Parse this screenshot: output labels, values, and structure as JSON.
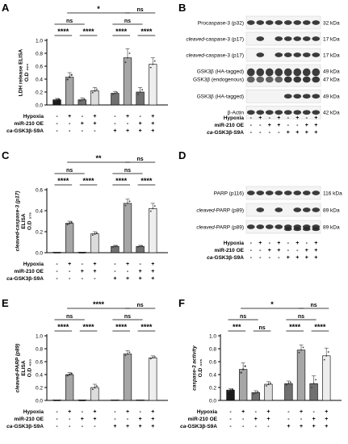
{
  "panels": {
    "A": {
      "label": "A",
      "ylabel": [
        "LDH release ELISA",
        "O.D ₄₉₀"
      ],
      "ylim": [
        0,
        1.0
      ],
      "yticks": [
        "0.0",
        "0.2",
        "0.4",
        "0.6",
        "0.8",
        "1.0"
      ],
      "values": [
        0.08,
        0.43,
        0.08,
        0.22,
        0.18,
        0.73,
        0.2,
        0.63
      ],
      "errors": [
        0.02,
        0.07,
        0.03,
        0.05,
        0.03,
        0.14,
        0.07,
        0.1
      ],
      "markers": [
        "square",
        "square",
        "triangle",
        "triangle",
        "circle",
        "circle",
        "circle",
        "circle"
      ],
      "rows": [
        {
          "label": "Hypoxia",
          "signs": [
            "-",
            "+",
            "-",
            "+",
            "-",
            "+",
            "-",
            "+"
          ]
        },
        {
          "label": "miR-210 OE",
          "signs": [
            "-",
            "-",
            "+",
            "+",
            "-",
            "-",
            "+",
            "+"
          ]
        },
        {
          "label": "ca-GSK3β-S9A",
          "signs": [
            "-",
            "-",
            "-",
            "-",
            "+",
            "+",
            "+",
            "+"
          ]
        }
      ],
      "sig": [
        {
          "text": "****",
          "a": 0,
          "b": 1,
          "level": 0
        },
        {
          "text": "****",
          "a": 2,
          "b": 3,
          "level": 0
        },
        {
          "text": "****",
          "a": 4,
          "b": 5,
          "level": 0
        },
        {
          "text": "****",
          "a": 6,
          "b": 7,
          "level": 0
        },
        {
          "text": "ns",
          "a": 0,
          "b": 2,
          "level": 1
        },
        {
          "text": "ns",
          "a": 4,
          "b": 6,
          "level": 1
        },
        {
          "text": "*",
          "a": 1,
          "b": 5,
          "level": 2
        },
        {
          "text": "ns",
          "a": 5,
          "b": 7,
          "level": 2
        }
      ]
    },
    "C": {
      "label": "C",
      "ylabel": [
        "cleaved-caspase-3 (p17)",
        "ELISA",
        "O.D ₃₇₅"
      ],
      "ylim": [
        0,
        0.6
      ],
      "yticks": [
        "0.0",
        "0.2",
        "0.4",
        "0.6"
      ],
      "values": [
        0.0,
        0.28,
        0.0,
        0.18,
        0.06,
        0.47,
        0.06,
        0.42
      ],
      "errors": [
        0.0,
        0.02,
        0.0,
        0.02,
        0.01,
        0.04,
        0.01,
        0.05
      ],
      "markers": [
        "square",
        "square",
        "triangle",
        "triangle",
        "circle",
        "circle",
        "circle",
        "circle"
      ],
      "rows": [
        {
          "label": "Hypoxia",
          "signs": [
            "-",
            "+",
            "-",
            "+",
            "-",
            "+",
            "-",
            "+"
          ]
        },
        {
          "label": "miR-210 OE",
          "signs": [
            "-",
            "-",
            "+",
            "+",
            "-",
            "-",
            "+",
            "+"
          ]
        },
        {
          "label": "ca-GSK3β-S9A",
          "signs": [
            "-",
            "-",
            "-",
            "-",
            "+",
            "+",
            "+",
            "+"
          ]
        }
      ],
      "sig": [
        {
          "text": "****",
          "a": 0,
          "b": 1,
          "level": 0
        },
        {
          "text": "****",
          "a": 2,
          "b": 3,
          "level": 0
        },
        {
          "text": "****",
          "a": 4,
          "b": 5,
          "level": 0
        },
        {
          "text": "****",
          "a": 6,
          "b": 7,
          "level": 0
        },
        {
          "text": "ns",
          "a": 0,
          "b": 2,
          "level": 1
        },
        {
          "text": "ns",
          "a": 4,
          "b": 6,
          "level": 1
        },
        {
          "text": "**",
          "a": 1,
          "b": 5,
          "level": 2
        },
        {
          "text": "ns",
          "a": 5,
          "b": 7,
          "level": 2
        }
      ]
    },
    "E": {
      "label": "E",
      "ylabel": [
        "cleaved-PARP (p89)",
        "ELISA",
        "O.D ₄₅₀"
      ],
      "ylim": [
        0,
        1.0
      ],
      "yticks": [
        "0.0",
        "0.2",
        "0.4",
        "0.6",
        "0.8",
        "1.0"
      ],
      "values": [
        0.0,
        0.4,
        0.0,
        0.2,
        0.0,
        0.72,
        0.0,
        0.66
      ],
      "errors": [
        0.0,
        0.03,
        0.0,
        0.05,
        0.0,
        0.05,
        0.0,
        0.03
      ],
      "markers": [
        "square",
        "square",
        "triangle",
        "triangle",
        "circle",
        "circle",
        "circle",
        "circle"
      ],
      "rows": [
        {
          "label": "Hypoxia",
          "signs": [
            "-",
            "+",
            "-",
            "+",
            "-",
            "+",
            "-",
            "+"
          ]
        },
        {
          "label": "miR-210 OE",
          "signs": [
            "-",
            "-",
            "+",
            "+",
            "-",
            "-",
            "+",
            "+"
          ]
        },
        {
          "label": "ca-GSK3β-S9A",
          "signs": [
            "-",
            "-",
            "-",
            "-",
            "+",
            "+",
            "+",
            "+"
          ]
        }
      ],
      "sig": [
        {
          "text": "****",
          "a": 0,
          "b": 1,
          "level": 0
        },
        {
          "text": "****",
          "a": 2,
          "b": 3,
          "level": 0
        },
        {
          "text": "****",
          "a": 4,
          "b": 5,
          "level": 0
        },
        {
          "text": "****",
          "a": 6,
          "b": 7,
          "level": 0
        },
        {
          "text": "ns",
          "a": 0,
          "b": 2,
          "level": 1
        },
        {
          "text": "ns",
          "a": 4,
          "b": 6,
          "level": 1
        },
        {
          "text": "****",
          "a": 1,
          "b": 5,
          "level": 2
        },
        {
          "text": "ns",
          "a": 5,
          "b": 7,
          "level": 2
        }
      ]
    },
    "F": {
      "label": "F",
      "ylabel": [
        "caspase-3 activity",
        "O.D ₄₀₅"
      ],
      "ylim": [
        0,
        1.0
      ],
      "yticks": [
        "0.0",
        "0.2",
        "0.4",
        "0.6",
        "0.8",
        "1.0"
      ],
      "values": [
        0.16,
        0.48,
        0.12,
        0.25,
        0.26,
        0.78,
        0.26,
        0.69
      ],
      "errors": [
        0.02,
        0.1,
        0.03,
        0.04,
        0.04,
        0.08,
        0.12,
        0.12
      ],
      "markers": [
        "square",
        "square",
        "triangle",
        "triangle",
        "circle",
        "circle",
        "circle",
        "circle"
      ],
      "rows": [
        {
          "label": "Hypoxia",
          "signs": [
            "-",
            "+",
            "-",
            "+",
            "-",
            "+",
            "-",
            "+"
          ]
        },
        {
          "label": "miR-210 OE",
          "signs": [
            "-",
            "-",
            "+",
            "+",
            "-",
            "-",
            "+",
            "+"
          ]
        },
        {
          "label": "ca-GSK3β-S9A",
          "signs": [
            "-",
            "-",
            "-",
            "-",
            "+",
            "+",
            "+",
            "+"
          ]
        }
      ],
      "sig": [
        {
          "text": "***",
          "a": 0,
          "b": 1,
          "level": 0
        },
        {
          "text": "ns",
          "a": 2,
          "b": 3,
          "level": 0
        },
        {
          "text": "****",
          "a": 4,
          "b": 5,
          "level": 0
        },
        {
          "text": "****",
          "a": 6,
          "b": 7,
          "level": 0
        },
        {
          "text": "ns",
          "a": 0,
          "b": 2,
          "level": 1
        },
        {
          "text": "ns",
          "a": 4,
          "b": 6,
          "level": 1
        },
        {
          "text": "*",
          "a": 1,
          "b": 5,
          "level": 2
        },
        {
          "text": "ns",
          "a": 5,
          "b": 7,
          "level": 2
        }
      ]
    }
  },
  "blots": {
    "B": {
      "label": "B",
      "rows": [
        {
          "label": "Procaspase-3 (p32)",
          "italic": "",
          "kda": "32 kDa",
          "pattern": [
            1,
            1,
            1,
            1,
            1,
            1,
            1,
            1
          ]
        },
        {
          "label": "-caspase-3 (p17)",
          "italic": "cleaved",
          "kda": "17 kDa",
          "pattern": [
            0,
            1,
            0,
            1,
            1,
            1,
            1,
            1
          ]
        },
        {
          "label": "-caspase-3 (p17)",
          "italic": "cleaved",
          "kda": "17 kDa",
          "pattern": [
            0,
            1,
            0,
            1,
            1,
            1,
            1,
            1
          ]
        },
        {
          "label": "GSK3β (HA-tagged)",
          "label2": "GSK3β (endogenous)",
          "italic": "",
          "kda": "49 kDa",
          "kda2": "47 kDa",
          "pattern": [
            1,
            1,
            1,
            1,
            2,
            2,
            2,
            2
          ]
        },
        {
          "label": "GSK3β (HA-tagged)",
          "italic": "",
          "kda": "49 kDa",
          "pattern": [
            0,
            0,
            0,
            0,
            1,
            1,
            1,
            1
          ]
        },
        {
          "label": "β-Actin",
          "italic": "",
          "kda": "42 kDa",
          "pattern": [
            1,
            1,
            1,
            1,
            1,
            1,
            1,
            1
          ]
        }
      ],
      "cond": [
        {
          "label": "Hypoxia",
          "signs": [
            "-",
            "+",
            "-",
            "+",
            "-",
            "+",
            "-",
            "+"
          ]
        },
        {
          "label": "miR-210 OE",
          "signs": [
            "-",
            "-",
            "+",
            "+",
            "-",
            "-",
            "+",
            "+"
          ]
        },
        {
          "label": "ca-GSK3β-S9A",
          "signs": [
            "-",
            "-",
            "-",
            "-",
            "+",
            "+",
            "+",
            "+"
          ]
        }
      ]
    },
    "D": {
      "label": "D",
      "rows": [
        {
          "label": "PARP (p116)",
          "italic": "",
          "kda": "116 kDa",
          "pattern": [
            1,
            1,
            1,
            1,
            1,
            1,
            1,
            1
          ]
        },
        {
          "label": "-PARP (p89)",
          "italic": "cleaved",
          "kda": "89 kDa",
          "pattern": [
            0,
            1,
            0,
            1,
            0,
            1,
            1,
            1
          ]
        },
        {
          "label": "-PARP (p89)",
          "italic": "cleaved",
          "kda": "89 kDa",
          "pattern": [
            1,
            1,
            1,
            1,
            2,
            2,
            2,
            2
          ]
        }
      ],
      "cond": [
        {
          "label": "Hypoxia",
          "signs": [
            "-",
            "+",
            "-",
            "+",
            "-",
            "+",
            "-",
            "+"
          ]
        },
        {
          "label": "miR-210 OE",
          "signs": [
            "-",
            "-",
            "+",
            "+",
            "-",
            "-",
            "+",
            "+"
          ]
        },
        {
          "label": "ca-GSK3β-S9A",
          "signs": [
            "-",
            "-",
            "-",
            "-",
            "+",
            "+",
            "+",
            "+"
          ]
        }
      ]
    }
  },
  "colors": {
    "dark": "#1c1c1c",
    "gray": "#a6a6a6",
    "light": "#eeeeee",
    "lane_fills": [
      "#1c1c1c",
      "#a6a6a6",
      "#707070",
      "#dcdcdc",
      "#707070",
      "#a6a6a6",
      "#707070",
      "#eeeeee"
    ]
  }
}
